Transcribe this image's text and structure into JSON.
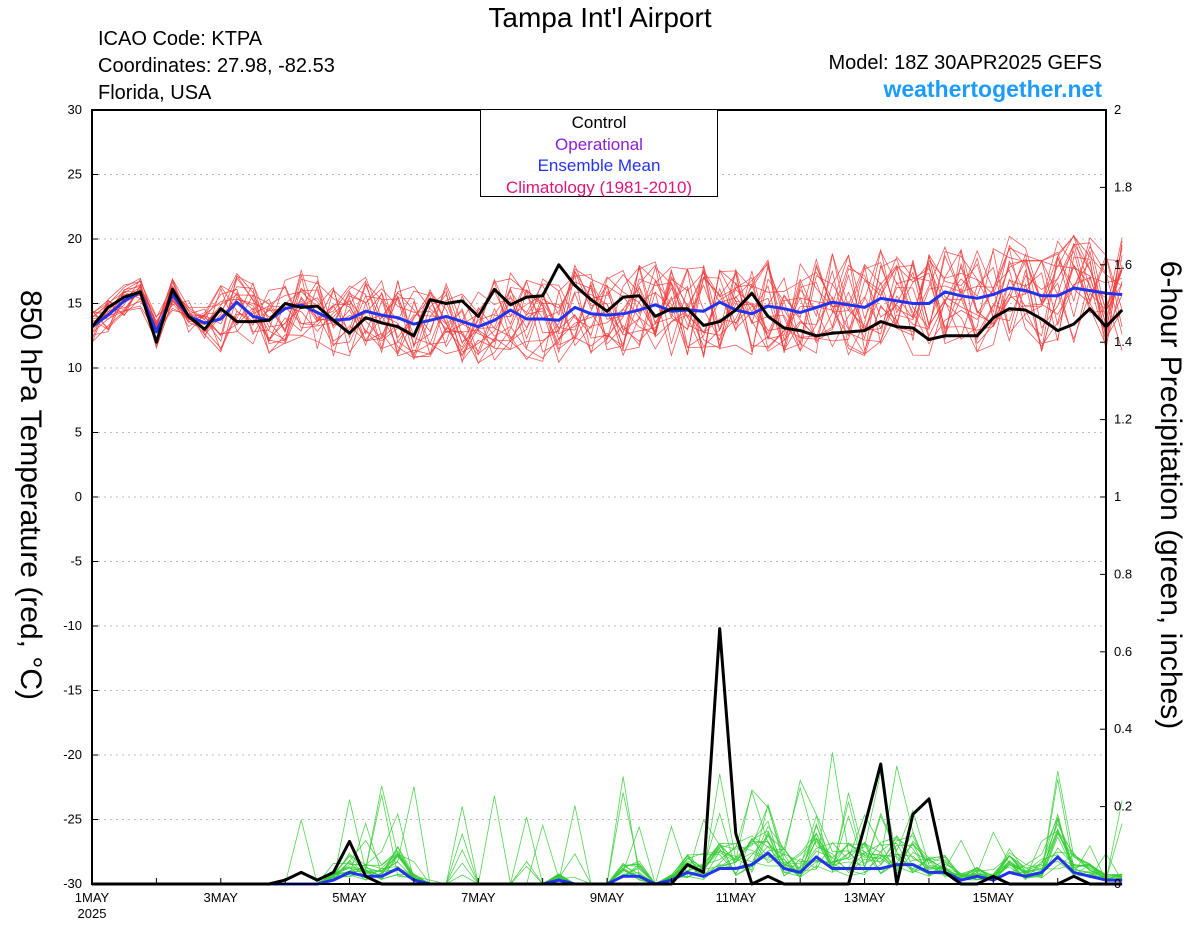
{
  "header": {
    "title": "Tampa Int'l Airport",
    "icao": "ICAO Code: KTPA",
    "coordinates": "Coordinates: 27.98, -82.53",
    "region": "Florida, USA",
    "model": "Model: 18Z 30APR2025 GEFS",
    "site": "weathertogether.net"
  },
  "legend": {
    "control": "Control",
    "operational": "Operational",
    "ensemble_mean": "Ensemble Mean",
    "climatology": "Climatology (1981-2010)"
  },
  "colors": {
    "control": "#000000",
    "operational": "#8a1fd6",
    "ensemble_mean": "#2233ee",
    "climatology": "#e0157a",
    "members_temp": "#f03c3c",
    "members_precip": "#33cc33",
    "site": "#1e9bff"
  },
  "chart_data": {
    "type": "line",
    "ylabel_left": "850 hPa Temperature (red, °C)",
    "ylabel_right": "6-hour Precipitation (green, inches)",
    "ylim_left": [
      -30,
      30
    ],
    "ylim_right": [
      0,
      2
    ],
    "yticks_left": [
      "30",
      "25",
      "20",
      "15",
      "10",
      "5",
      "0",
      "-5",
      "-10",
      "-15",
      "-20",
      "-25",
      "-30"
    ],
    "yticks_right": [
      "2",
      "1.8",
      "1.6",
      "1.4",
      "1.2",
      "1",
      "0.8",
      "0.6",
      "0.4",
      "0.2",
      "0"
    ],
    "x_tick_labels": [
      "1MAY",
      "3MAY",
      "5MAY",
      "7MAY",
      "9MAY",
      "11MAY",
      "13MAY",
      "15MAY"
    ],
    "x_sublabel": "2025",
    "grid": true,
    "legend_position": "top-center",
    "x_day_range": [
      1,
      16.75
    ],
    "x_step_days": 0.25,
    "temperature": {
      "control": [
        13.2,
        14.7,
        15.5,
        15.9,
        12.0,
        16.1,
        14.0,
        13.0,
        14.6,
        13.6,
        13.6,
        13.7,
        15.0,
        14.7,
        14.8,
        13.7,
        12.7,
        13.9,
        13.5,
        13.2,
        12.5,
        15.3,
        15.0,
        15.2,
        14.0,
        16.1,
        14.9,
        15.5,
        15.6,
        18.0,
        16.4,
        15.3,
        14.4,
        15.5,
        15.6,
        14.0,
        14.6,
        14.6,
        13.3,
        13.6,
        14.5,
        15.8,
        14.0,
        13.1,
        12.9,
        12.5,
        12.7,
        12.8,
        12.9,
        13.6,
        13.2,
        13.1,
        12.2,
        12.5,
        12.5,
        12.5,
        13.9,
        14.6,
        14.5,
        13.8,
        12.9,
        13.4,
        14.6,
        13.2,
        14.5
      ],
      "ensemble_mean": [
        13.2,
        14.1,
        15.2,
        15.9,
        12.8,
        15.7,
        14.0,
        13.5,
        13.8,
        15.1,
        14.0,
        13.7,
        14.6,
        14.9,
        14.3,
        13.7,
        13.8,
        14.4,
        14.1,
        13.9,
        13.4,
        13.7,
        14.0,
        13.6,
        13.2,
        13.7,
        14.5,
        13.8,
        13.8,
        13.7,
        14.7,
        14.2,
        14.1,
        14.2,
        14.5,
        14.9,
        14.4,
        14.5,
        14.4,
        15.1,
        14.5,
        14.2,
        14.8,
        14.6,
        14.3,
        14.7,
        15.1,
        14.9,
        14.7,
        15.4,
        15.2,
        15.0,
        15.0,
        15.9,
        15.6,
        15.4,
        15.7,
        16.2,
        16.0,
        15.6,
        15.6,
        16.2,
        16.0,
        15.8,
        15.7
      ]
    },
    "precipitation": {
      "control": [
        0,
        0,
        0,
        0,
        0,
        0,
        0,
        0,
        0,
        0,
        0,
        0,
        0.01,
        0.03,
        0.01,
        0.03,
        0.11,
        0.02,
        0,
        0,
        0,
        0,
        0,
        0,
        0,
        0,
        0,
        0,
        0,
        0,
        0,
        0,
        0,
        0,
        0,
        0,
        0,
        0.05,
        0.03,
        0.66,
        0.13,
        0,
        0.02,
        0,
        0,
        0,
        0,
        0,
        0.15,
        0.31,
        0,
        0.18,
        0.22,
        0.03,
        0,
        0,
        0.02,
        0,
        0,
        0,
        0,
        0.02,
        0,
        0,
        0
      ],
      "ensemble_mean": [
        0,
        0,
        0,
        0,
        0,
        0,
        0,
        0,
        0,
        0,
        0,
        0,
        0,
        0,
        0,
        0.01,
        0.03,
        0.02,
        0.02,
        0.04,
        0.01,
        0,
        0,
        0,
        0,
        0,
        0,
        0,
        0,
        0.01,
        0,
        0,
        0,
        0.02,
        0.02,
        0,
        0.01,
        0.03,
        0.02,
        0.04,
        0.04,
        0.05,
        0.08,
        0.04,
        0.03,
        0.07,
        0.04,
        0.04,
        0.04,
        0.04,
        0.05,
        0.05,
        0.03,
        0.03,
        0.01,
        0.02,
        0.01,
        0.03,
        0.02,
        0.03,
        0.07,
        0.03,
        0.02,
        0.01,
        0.01
      ]
    }
  }
}
